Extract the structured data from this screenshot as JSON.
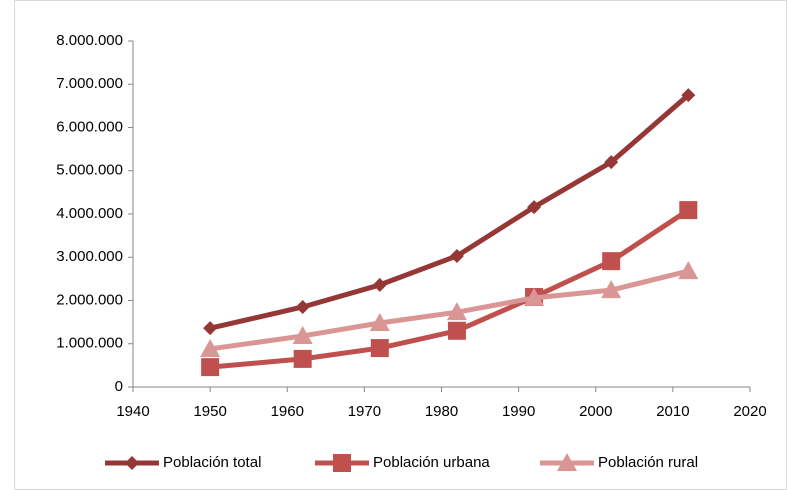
{
  "chart_data": {
    "type": "line",
    "x": [
      1950,
      1962,
      1972,
      1982,
      1992,
      2002,
      2012
    ],
    "series": [
      {
        "name": "Población total",
        "color": "#953735",
        "marker": "diamond",
        "values": [
          1360000,
          1850000,
          2360000,
          3030000,
          4160000,
          5200000,
          6750000
        ]
      },
      {
        "name": "Población urbana",
        "color": "#c0504d",
        "marker": "square",
        "values": [
          460000,
          650000,
          900000,
          1300000,
          2080000,
          2910000,
          4090000
        ]
      },
      {
        "name": "Población rural",
        "color": "#d99694",
        "marker": "triangle",
        "values": [
          880000,
          1180000,
          1480000,
          1730000,
          2060000,
          2240000,
          2680000
        ]
      }
    ],
    "xlim": [
      1940,
      2020
    ],
    "xticks": [
      1940,
      1950,
      1960,
      1970,
      1980,
      1990,
      2000,
      2010,
      2020
    ],
    "ylim": [
      0,
      8000000
    ],
    "yticks": [
      0,
      {
        "value": 1000000,
        "label": "1.000.000"
      },
      {
        "value": 2000000,
        "label": "2.000.000"
      },
      {
        "value": 3000000,
        "label": "3.000.000"
      },
      {
        "value": 4000000,
        "label": "4.000.000"
      },
      {
        "value": 5000000,
        "label": "5.000.000"
      },
      {
        "value": 6000000,
        "label": "6.000.000"
      },
      {
        "value": 7000000,
        "label": "7.000.000"
      },
      {
        "value": 8000000,
        "label": "8.000.000"
      }
    ],
    "grid": false,
    "legend": "bottom"
  }
}
